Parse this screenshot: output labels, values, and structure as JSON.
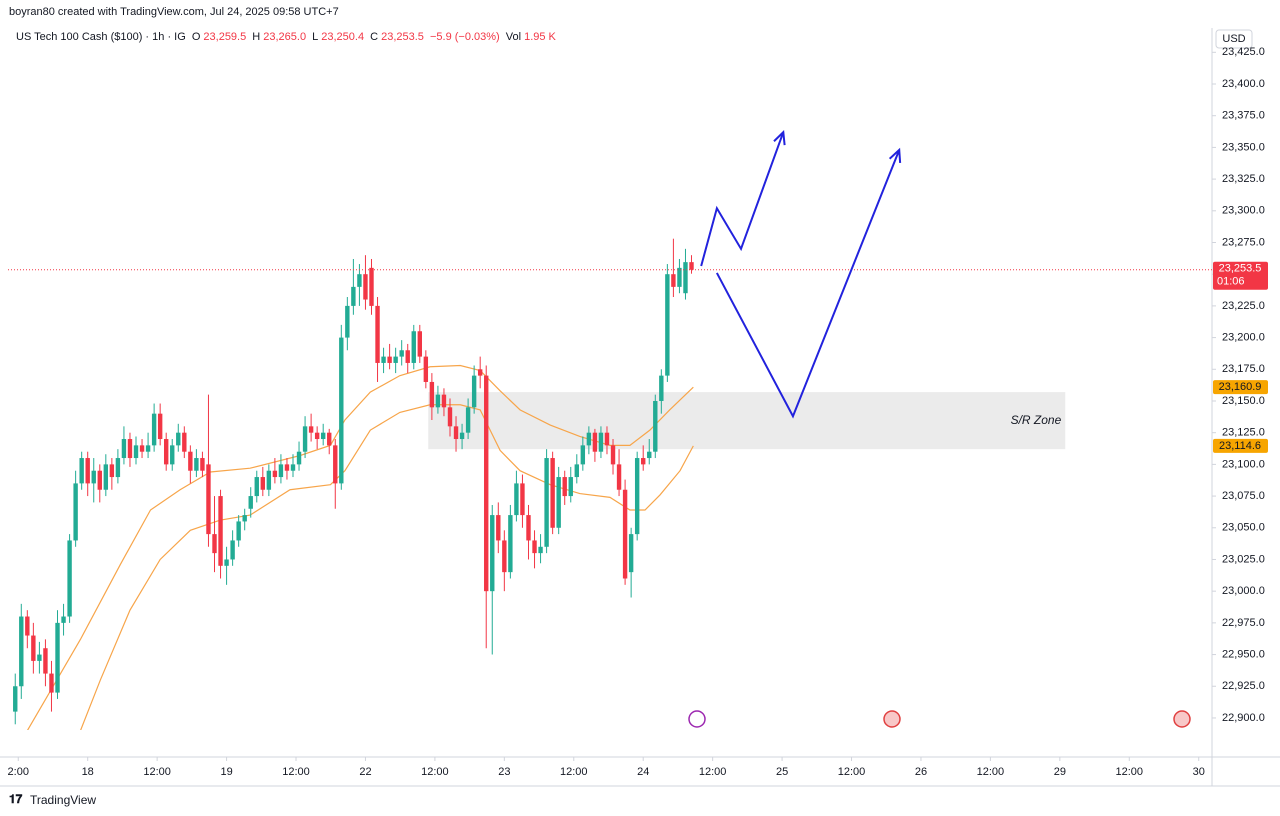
{
  "header": {
    "credit": "boyran80 created with TradingView.com, Jul 24, 2025 09:58 UTC+7",
    "symbol": "US Tech 100 Cash ($100) · 1h · IG",
    "ohlc": [
      {
        "k": "O",
        "v": "23,259.5"
      },
      {
        "k": "H",
        "v": "23,265.0"
      },
      {
        "k": "L",
        "v": "23,250.4"
      },
      {
        "k": "C",
        "v": "23,253.5"
      }
    ],
    "change": "−5.9 (−0.03%)",
    "vol_label": "Vol",
    "vol": "1.95 K"
  },
  "footer": {
    "brand": "TradingView"
  },
  "chart_data": {
    "type": "candlestick",
    "currency": "USD",
    "up_color": "#22ab94",
    "down_color": "#f23645",
    "grid": false,
    "xlim": [
      -1.2,
      198.2
    ],
    "xticks": [
      {
        "value": 0.5,
        "label": "2:00"
      },
      {
        "value": 12,
        "label": "18"
      },
      {
        "value": 23.5,
        "label": "12:00"
      },
      {
        "value": 35,
        "label": "19"
      },
      {
        "value": 46.5,
        "label": "12:00"
      },
      {
        "value": 58,
        "label": "22"
      },
      {
        "value": 69.5,
        "label": "12:00"
      },
      {
        "value": 81,
        "label": "23"
      },
      {
        "value": 92.5,
        "label": "12:00"
      },
      {
        "value": 104,
        "label": "24"
      },
      {
        "value": 115.5,
        "label": "12:00"
      },
      {
        "value": 127,
        "label": "25"
      },
      {
        "value": 138.5,
        "label": "12:00"
      },
      {
        "value": 150,
        "label": "26"
      },
      {
        "value": 161.5,
        "label": "12:00"
      },
      {
        "value": 173,
        "label": "29"
      },
      {
        "value": 184.5,
        "label": "12:00"
      },
      {
        "value": 196,
        "label": "30"
      }
    ],
    "ylim": [
      22890.5,
      23442.6
    ],
    "yticks": [
      {
        "value": 22900,
        "label": "22,900.0"
      },
      {
        "value": 22925,
        "label": "22,925.0"
      },
      {
        "value": 22950,
        "label": "22,950.0"
      },
      {
        "value": 22975,
        "label": "22,975.0"
      },
      {
        "value": 23000,
        "label": "23,000.0"
      },
      {
        "value": 23025,
        "label": "23,025.0"
      },
      {
        "value": 23050,
        "label": "23,050.0"
      },
      {
        "value": 23075,
        "label": "23,075.0"
      },
      {
        "value": 23100,
        "label": "23,100.0"
      },
      {
        "value": 23125,
        "label": "23,125.0"
      },
      {
        "value": 23150,
        "label": "23,150.0"
      },
      {
        "value": 23175,
        "label": "23,175.0"
      },
      {
        "value": 23200,
        "label": "23,200.0"
      },
      {
        "value": 23225,
        "label": "23,225.0"
      },
      {
        "value": 23250,
        "label": "23,250.0"
      },
      {
        "value": 23275,
        "label": "23,275.0"
      },
      {
        "value": 23300,
        "label": "23,300.0"
      },
      {
        "value": 23325,
        "label": "23,325.0"
      },
      {
        "value": 23350,
        "label": "23,350.0"
      },
      {
        "value": 23375,
        "label": "23,375.0"
      },
      {
        "value": 23400,
        "label": "23,400.0"
      },
      {
        "value": 23425,
        "label": "23,425.0"
      }
    ],
    "ohlc": [
      [
        22905,
        22935,
        22895,
        22925
      ],
      [
        22925,
        22990,
        22915,
        22980
      ],
      [
        22980,
        22985,
        22955,
        22965
      ],
      [
        22965,
        22975,
        22935,
        22945
      ],
      [
        22945,
        22960,
        22935,
        22950
      ],
      [
        22955,
        22962,
        22925,
        22935
      ],
      [
        22935,
        22945,
        22905,
        22920
      ],
      [
        22920,
        22985,
        22915,
        22975
      ],
      [
        22975,
        22990,
        22965,
        22980
      ],
      [
        22980,
        23045,
        22975,
        23040
      ],
      [
        23040,
        23095,
        23035,
        23085
      ],
      [
        23085,
        23110,
        23080,
        23105
      ],
      [
        23105,
        23110,
        23075,
        23085
      ],
      [
        23085,
        23105,
        23070,
        23095
      ],
      [
        23095,
        23100,
        23070,
        23080
      ],
      [
        23080,
        23108,
        23075,
        23100
      ],
      [
        23100,
        23105,
        23080,
        23090
      ],
      [
        23090,
        23112,
        23085,
        23105
      ],
      [
        23105,
        23130,
        23100,
        23120
      ],
      [
        23120,
        23125,
        23098,
        23105
      ],
      [
        23105,
        23122,
        23100,
        23115
      ],
      [
        23115,
        23120,
        23105,
        23110
      ],
      [
        23110,
        23125,
        23105,
        23115
      ],
      [
        23115,
        23148,
        23110,
        23140
      ],
      [
        23140,
        23148,
        23115,
        23120
      ],
      [
        23120,
        23125,
        23095,
        23100
      ],
      [
        23100,
        23120,
        23095,
        23115
      ],
      [
        23115,
        23132,
        23110,
        23125
      ],
      [
        23125,
        23130,
        23105,
        23110
      ],
      [
        23110,
        23115,
        23085,
        23095
      ],
      [
        23095,
        23112,
        23090,
        23105
      ],
      [
        23105,
        23110,
        23090,
        23095
      ],
      [
        23100,
        23155,
        23035,
        23045
      ],
      [
        23045,
        23075,
        23015,
        23030
      ],
      [
        23075,
        23080,
        23010,
        23020
      ],
      [
        23020,
        23035,
        23005,
        23025
      ],
      [
        23025,
        23048,
        23020,
        23040
      ],
      [
        23040,
        23060,
        23035,
        23055
      ],
      [
        23055,
        23065,
        23048,
        23060
      ],
      [
        23065,
        23082,
        23058,
        23075
      ],
      [
        23075,
        23095,
        23070,
        23090
      ],
      [
        23090,
        23098,
        23075,
        23080
      ],
      [
        23080,
        23100,
        23075,
        23095
      ],
      [
        23095,
        23105,
        23085,
        23090
      ],
      [
        23090,
        23108,
        23085,
        23100
      ],
      [
        23100,
        23105,
        23088,
        23095
      ],
      [
        23095,
        23108,
        23090,
        23100
      ],
      [
        23100,
        23118,
        23095,
        23110
      ],
      [
        23110,
        23138,
        23105,
        23130
      ],
      [
        23130,
        23140,
        23118,
        23125
      ],
      [
        23125,
        23130,
        23112,
        23120
      ],
      [
        23120,
        23132,
        23115,
        23125
      ],
      [
        23125,
        23128,
        23108,
        23115
      ],
      [
        23115,
        23120,
        23065,
        23085
      ],
      [
        23085,
        23210,
        23080,
        23200
      ],
      [
        23200,
        23232,
        23190,
        23225
      ],
      [
        23225,
        23262,
        23218,
        23240
      ],
      [
        23240,
        23258,
        23225,
        23250
      ],
      [
        23250,
        23265,
        23222,
        23230
      ],
      [
        23255,
        23262,
        23218,
        23225
      ],
      [
        23225,
        23232,
        23165,
        23180
      ],
      [
        23180,
        23192,
        23172,
        23185
      ],
      [
        23185,
        23195,
        23175,
        23180
      ],
      [
        23180,
        23192,
        23172,
        23185
      ],
      [
        23185,
        23198,
        23178,
        23190
      ],
      [
        23190,
        23195,
        23172,
        23180
      ],
      [
        23180,
        23210,
        23175,
        23205
      ],
      [
        23205,
        23210,
        23180,
        23185
      ],
      [
        23185,
        23190,
        23160,
        23165
      ],
      [
        23165,
        23172,
        23135,
        23145
      ],
      [
        23145,
        23162,
        23140,
        23155
      ],
      [
        23155,
        23160,
        23138,
        23145
      ],
      [
        23145,
        23152,
        23122,
        23130
      ],
      [
        23130,
        23138,
        23110,
        23120
      ],
      [
        23120,
        23132,
        23112,
        23125
      ],
      [
        23125,
        23152,
        23120,
        23145
      ],
      [
        23145,
        23178,
        23140,
        23170
      ],
      [
        23175,
        23185,
        23160,
        23170
      ],
      [
        23170,
        23178,
        22955,
        23000
      ],
      [
        23000,
        23068,
        22950,
        23060
      ],
      [
        23060,
        23070,
        23030,
        23040
      ],
      [
        23040,
        23048,
        23000,
        23015
      ],
      [
        23015,
        23068,
        23010,
        23060
      ],
      [
        23060,
        23095,
        23055,
        23085
      ],
      [
        23085,
        23092,
        23050,
        23060
      ],
      [
        23060,
        23068,
        23025,
        23040
      ],
      [
        23040,
        23048,
        23018,
        23030
      ],
      [
        23030,
        23045,
        23022,
        23035
      ],
      [
        23035,
        23112,
        23030,
        23105
      ],
      [
        23105,
        23110,
        23045,
        23050
      ],
      [
        23050,
        23098,
        23045,
        23090
      ],
      [
        23090,
        23095,
        23068,
        23075
      ],
      [
        23075,
        23098,
        23070,
        23090
      ],
      [
        23090,
        23108,
        23085,
        23100
      ],
      [
        23100,
        23122,
        23095,
        23115
      ],
      [
        23115,
        23130,
        23108,
        23125
      ],
      [
        23125,
        23128,
        23102,
        23110
      ],
      [
        23110,
        23130,
        23105,
        23125
      ],
      [
        23125,
        23130,
        23108,
        23115
      ],
      [
        23115,
        23120,
        23092,
        23100
      ],
      [
        23100,
        23112,
        23075,
        23080
      ],
      [
        23080,
        23088,
        23005,
        23010
      ],
      [
        23015,
        23050,
        22995,
        23045
      ],
      [
        23045,
        23110,
        23040,
        23105
      ],
      [
        23105,
        23115,
        23095,
        23100
      ],
      [
        23105,
        23120,
        23100,
        23110
      ],
      [
        23110,
        23155,
        23105,
        23150
      ],
      [
        23150,
        23175,
        23140,
        23170
      ],
      [
        23170,
        23258,
        23165,
        23250
      ],
      [
        23250,
        23278,
        23232,
        23240
      ],
      [
        23240,
        23262,
        23235,
        23255
      ],
      [
        23235,
        23270,
        23230,
        23259.5
      ],
      [
        23259.5,
        23265,
        23250.4,
        23253.5
      ]
    ],
    "series": [
      {
        "color": "#f7a54a",
        "x": [
          2,
          10.8,
          17.4,
          22.4,
          27.3,
          32.3,
          38.9,
          47.2,
          52.2,
          54.6,
          58.8,
          63.7,
          68.7,
          73.7,
          77,
          80.3,
          83.6,
          88.6,
          93.5,
          98.5,
          101.8,
          105.1,
          108.4,
          112.3
        ],
        "values": [
          22890,
          22962,
          23021,
          23064,
          23080,
          23094,
          23097,
          23107,
          23115,
          23135,
          23157,
          23170,
          23177,
          23178,
          23174,
          23158,
          23143,
          23131,
          23122,
          23115,
          23115,
          23127,
          23143,
          23160.9
        ]
      },
      {
        "color": "#f7a54a",
        "x": [
          10.8,
          14.1,
          19,
          24,
          29,
          33.9,
          38.9,
          45.5,
          52.2,
          54.6,
          58.8,
          63.7,
          68.7,
          73.7,
          77,
          80.3,
          83.6,
          88.6,
          93.5,
          98.5,
          101.8,
          104.3,
          106.8,
          110.1,
          112.3
        ],
        "values": [
          22890,
          22930,
          22985,
          23025,
          23048,
          23056,
          23060,
          23080,
          23084,
          23095,
          23127,
          23141,
          23147,
          23147,
          23143,
          23111,
          23095,
          23084,
          23077,
          23074,
          23064,
          23064,
          23076,
          23095,
          23114.6
        ]
      }
    ],
    "price_labels": [
      {
        "value": 23160.9,
        "label": "23,160.9",
        "color": "#f7a500"
      },
      {
        "value": 23114.6,
        "label": "23,114.6",
        "color": "#f7a500"
      }
    ],
    "last_price": {
      "value": 23253.5,
      "label": "23,253.5",
      "countdown": "01:06",
      "color": "#f23645"
    },
    "zone": {
      "label": "S/R Zone",
      "x": [
        68.4,
        173.9
      ],
      "y": [
        23112,
        23157
      ],
      "color": "#e8e8e8"
    },
    "drawings": [
      {
        "color": "#2222dd",
        "x": [
          113.6,
          116.2,
          120.2,
          127.2
        ],
        "y": [
          23256.5,
          23302,
          23270,
          23362
        ]
      },
      {
        "color": "#2222dd",
        "x": [
          116.2,
          128.8,
          146.4
        ],
        "y": [
          23251,
          23138,
          23348
        ]
      }
    ]
  }
}
